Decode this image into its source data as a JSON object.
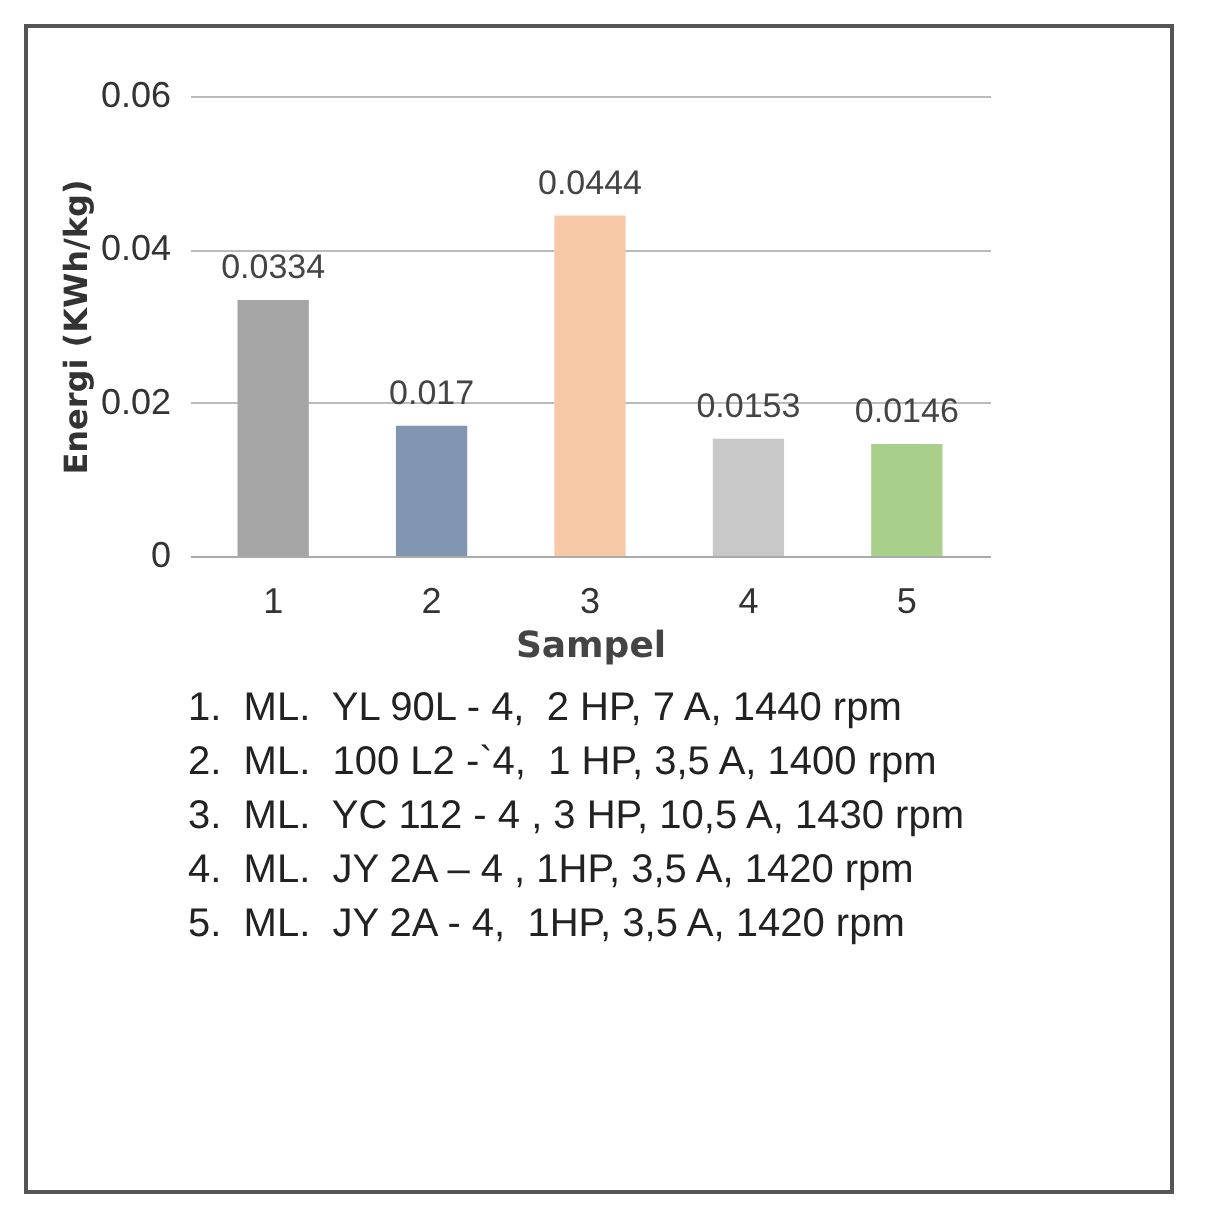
{
  "chart_data": {
    "type": "bar",
    "xlabel": "Sampel",
    "ylabel": "Energi (KWh/kg)",
    "categories": [
      "1",
      "2",
      "3",
      "4",
      "5"
    ],
    "values": [
      0.0334,
      0.017,
      0.0444,
      0.0153,
      0.0146
    ],
    "colors": [
      "#a5a5a5",
      "#8096b2",
      "#f7c8a6",
      "#c8c8c8",
      "#a8d08a"
    ],
    "ylim": [
      0,
      0.06
    ],
    "yticks": [
      0,
      0.02,
      0.04,
      0.06
    ],
    "grid": "y",
    "data_labels": true,
    "annotations": [
      "1.  ML.  YL 90L - 4,  2 HP, 7 A, 1440 rpm",
      "2.  ML.  100 L2 -`4,  1 HP, 3,5 A, 1400 rpm",
      "3.  ML.  YC 112 - 4 , 3 HP, 10,5 A, 1430 rpm",
      "4.  ML.  JY 2A – 4 , 1HP, 3,5 A, 1420 rpm",
      "5.  ML.  JY 2A - 4,  1HP, 3,5 A, 1420 rpm"
    ]
  }
}
